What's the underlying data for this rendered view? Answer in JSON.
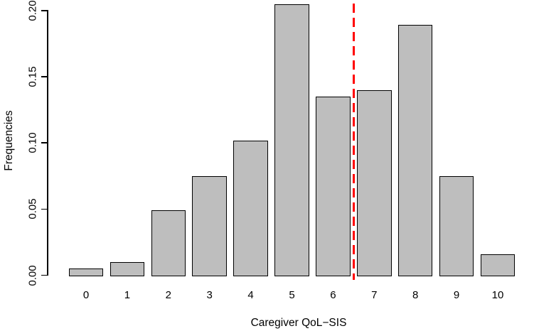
{
  "chart_data": {
    "type": "bar",
    "title": "",
    "xlabel": "Caregiver QoL−SIS",
    "ylabel": "Frequencies",
    "categories": [
      "0",
      "1",
      "2",
      "3",
      "4",
      "5",
      "6",
      "7",
      "8",
      "9",
      "10"
    ],
    "values": [
      0.005,
      0.01,
      0.049,
      0.075,
      0.102,
      0.205,
      0.135,
      0.14,
      0.189,
      0.075,
      0.016
    ],
    "y_ticks": [
      {
        "label": "0.00",
        "value": 0.0
      },
      {
        "label": "0.05",
        "value": 0.05
      },
      {
        "label": "0.10",
        "value": 0.1
      },
      {
        "label": "0.15",
        "value": 0.15
      },
      {
        "label": "0.20",
        "value": 0.2
      }
    ],
    "ylim": [
      0,
      0.205
    ],
    "grid": false,
    "legend": null,
    "style": {
      "bar_fill": "#BEBEBE",
      "bar_border": "#000000",
      "axis_color": "#000000",
      "background": "#FFFFFF",
      "reference_line_color": "#FF0000"
    },
    "reference_line": {
      "x": 6.5,
      "style": "dashed"
    }
  }
}
